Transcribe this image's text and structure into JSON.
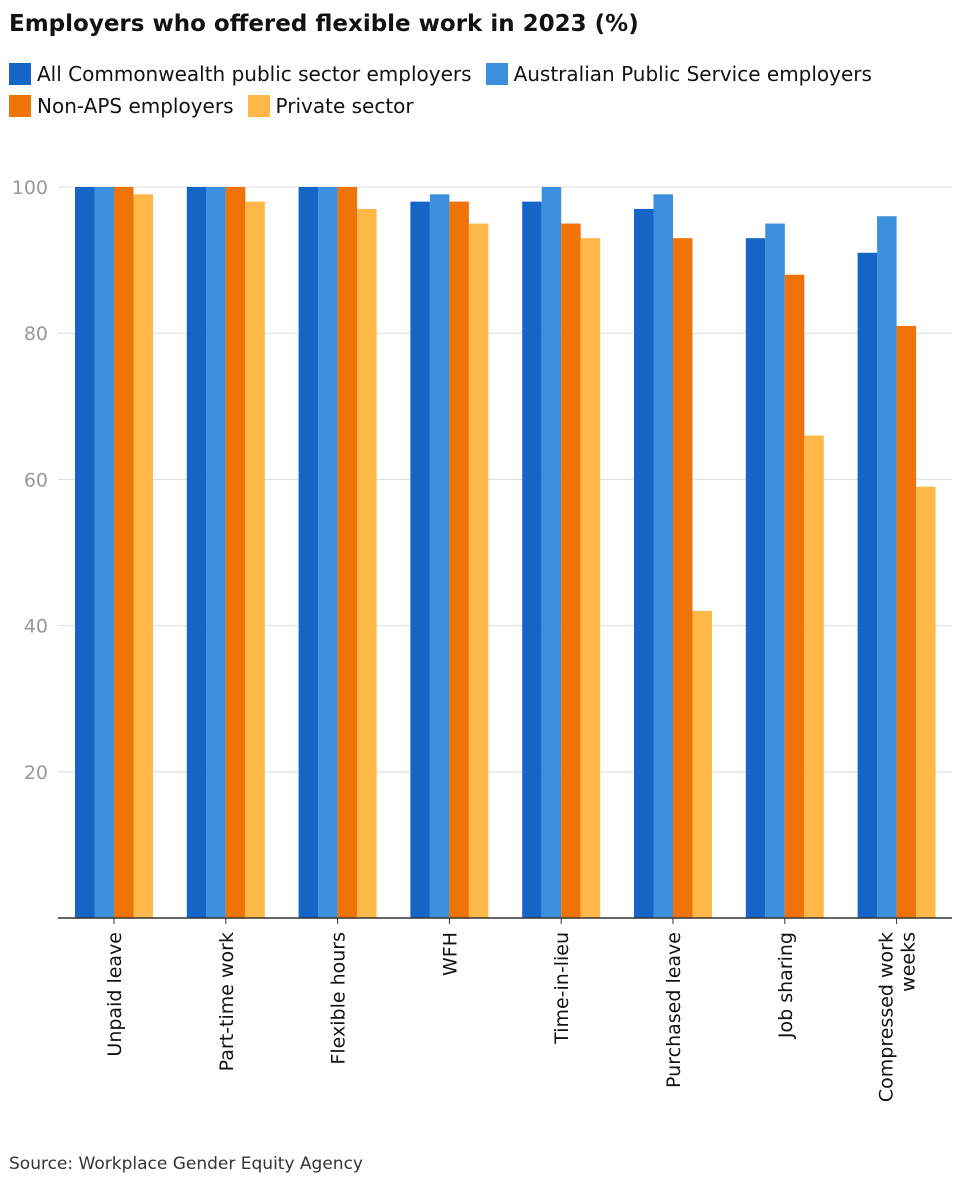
{
  "chart_data": {
    "type": "bar",
    "title": "Employers who offered flexible work in 2023 (%)",
    "xlabel": "",
    "ylabel": "",
    "ylim": [
      0,
      100
    ],
    "yticks": [
      20,
      40,
      60,
      80,
      100
    ],
    "grid": true,
    "legend_position": "top",
    "categories": [
      "Unpaid leave",
      "Part-time work",
      "Flexible hours",
      "WFH",
      "Time-in-lieu",
      "Purchased leave",
      "Job sharing",
      "Compressed work weeks"
    ],
    "series": [
      {
        "name": "All Commonwealth public sector employers",
        "color": "#1565c7",
        "values": [
          100,
          100,
          100,
          98,
          98,
          97,
          93,
          91
        ]
      },
      {
        "name": "Australian Public Service employers",
        "color": "#3b8fdc",
        "values": [
          100,
          100,
          100,
          99,
          100,
          99,
          95,
          96
        ]
      },
      {
        "name": "Non-APS employers",
        "color": "#f07308",
        "values": [
          100,
          100,
          100,
          98,
          95,
          93,
          88,
          81
        ]
      },
      {
        "name": "Private sector",
        "color": "#ffb847",
        "values": [
          99,
          98,
          97,
          95,
          93,
          42,
          66,
          59
        ]
      }
    ],
    "source": "Source: Workplace Gender Equity Agency"
  }
}
